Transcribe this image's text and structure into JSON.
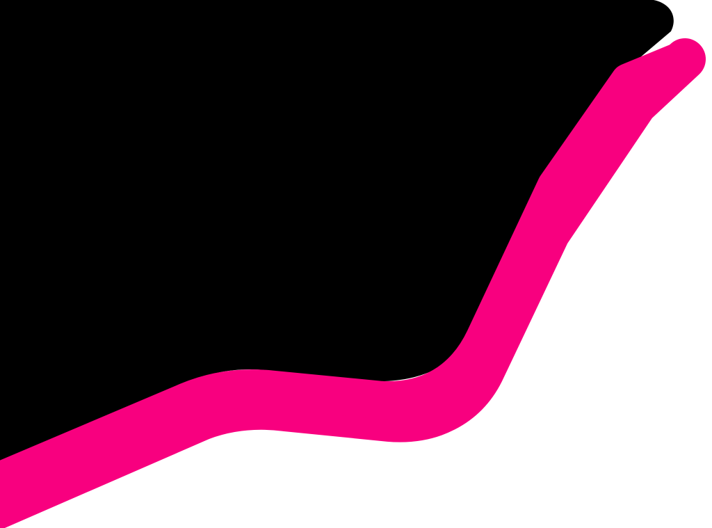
{
  "artwork": {
    "background_color": "#ffffff",
    "shape_color": "#000000",
    "accent_color": "#f8007f"
  }
}
